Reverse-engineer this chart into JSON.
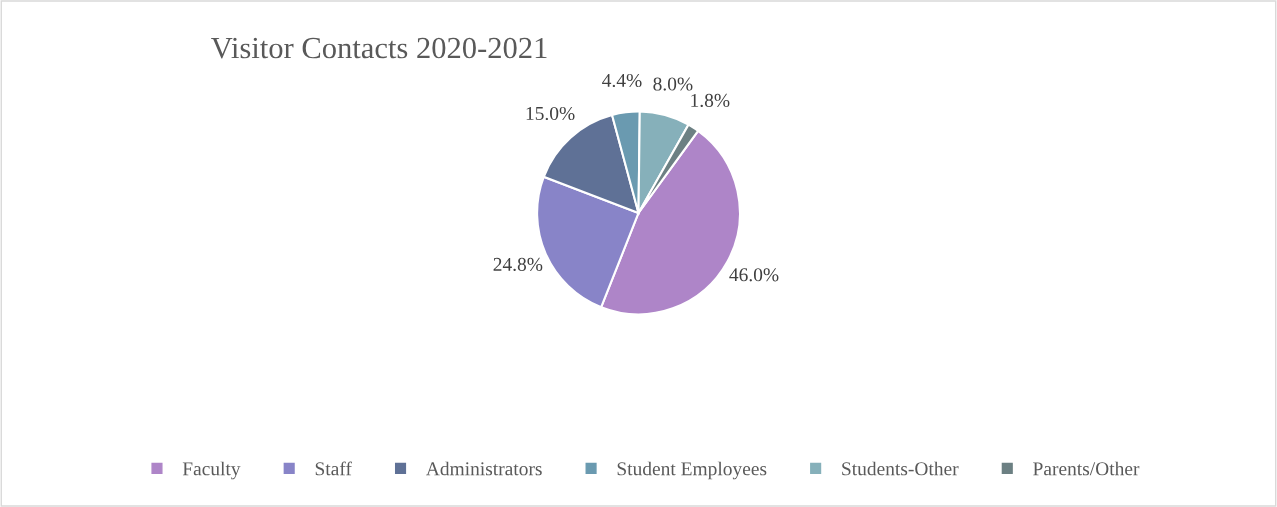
{
  "chart_data": {
    "type": "pie",
    "title": "Visitor Contacts 2020-2021",
    "categories": [
      "Faculty",
      "Staff",
      "Administrators",
      "Student Employees",
      "Students-Other",
      "Parents/Other"
    ],
    "values": [
      46.0,
      24.8,
      15.0,
      4.4,
      8.0,
      1.8
    ],
    "value_labels": [
      "46.0%",
      "24.8%",
      "15.0%",
      "4.4%",
      "8.0%",
      "1.8%"
    ],
    "colors": [
      "#ae85c8",
      "#8884c8",
      "#5f7196",
      "#6a9ab0",
      "#86b0ba",
      "#6c8083"
    ],
    "legend": "bottom"
  }
}
